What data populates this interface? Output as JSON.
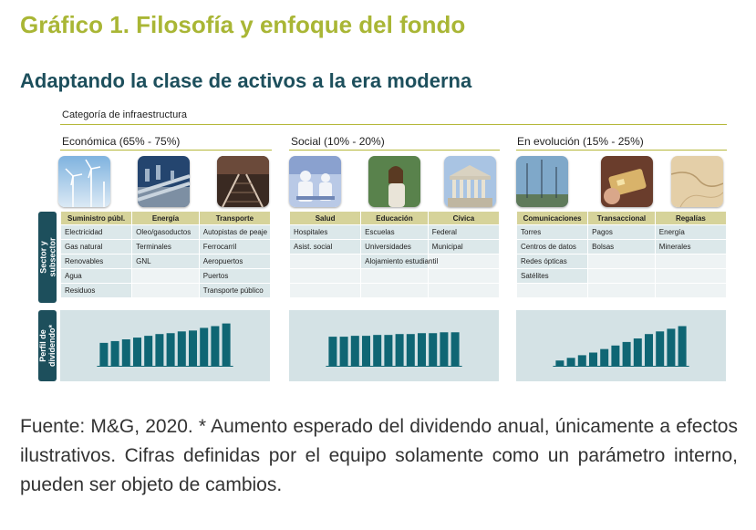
{
  "title": "Gráfico 1. Filosofía y enfoque del fondo",
  "subtitle": "Adaptando la clase de activos a la era moderna",
  "category_label": "Categoría de infraestructura",
  "side_labels": {
    "sector": "Sector y subsector",
    "dividend": "Perfil de dividendo*"
  },
  "groups": [
    {
      "title": "Económica (65% - 75%)",
      "columns": [
        "Suministro públ.",
        "Energía",
        "Transporte"
      ],
      "rows": [
        [
          "Electricidad",
          "Oleo/gasoductos",
          "Autopistas de peaje"
        ],
        [
          "Gas natural",
          "Terminales",
          "Ferrocarril"
        ],
        [
          "Renovables",
          "GNL",
          "Aeropuertos"
        ],
        [
          "Agua",
          "",
          "Puertos"
        ],
        [
          "Residuos",
          "",
          "Transporte público"
        ]
      ]
    },
    {
      "title": "Social (10% - 20%)",
      "columns": [
        "Salud",
        "Educación",
        "Cívica"
      ],
      "rows": [
        [
          "Hospitales",
          "Escuelas",
          "Federal"
        ],
        [
          "Asist. social",
          "Universidades",
          "Municipal"
        ],
        [
          "",
          "Alojamiento estudiantil",
          ""
        ],
        [
          "",
          "",
          ""
        ],
        [
          "",
          "",
          ""
        ]
      ]
    },
    {
      "title": "En evolución (15% - 25%)",
      "columns": [
        "Comunicaciones",
        "Transaccional",
        "Regalías"
      ],
      "rows": [
        [
          "Torres",
          "Pagos",
          "Energía"
        ],
        [
          "Centros de datos",
          "Bolsas",
          "Minerales"
        ],
        [
          "Redes ópticas",
          "",
          ""
        ],
        [
          "Satélites",
          "",
          ""
        ],
        [
          "",
          "",
          ""
        ]
      ]
    }
  ],
  "colors": {
    "bar": "#0f6674",
    "panel": "#d4e2e5",
    "title": "#a9b635",
    "subtitle": "#1d4f5c"
  },
  "chart_data": [
    {
      "type": "bar",
      "categories": [
        "1",
        "2",
        "3",
        "4",
        "5",
        "6",
        "7",
        "8",
        "9",
        "10",
        "11",
        "12"
      ],
      "values": [
        26,
        28,
        30,
        32,
        34,
        36,
        37,
        39,
        40,
        43,
        45,
        48
      ],
      "ylim": [
        0,
        60
      ]
    },
    {
      "type": "bar",
      "categories": [
        "1",
        "2",
        "3",
        "4",
        "5",
        "6",
        "7",
        "8",
        "9",
        "10",
        "11",
        "12"
      ],
      "values": [
        33,
        33,
        34,
        34,
        35,
        35,
        36,
        36,
        37,
        37,
        38,
        38
      ],
      "ylim": [
        0,
        60
      ]
    },
    {
      "type": "bar",
      "categories": [
        "1",
        "2",
        "3",
        "4",
        "5",
        "6",
        "7",
        "8",
        "9",
        "10",
        "11",
        "12"
      ],
      "values": [
        6,
        9,
        12,
        15,
        19,
        23,
        27,
        31,
        36,
        39,
        42,
        45
      ],
      "ylim": [
        0,
        60
      ]
    }
  ],
  "footer": "Fuente: M&G, 2020. * Aumento esperado del dividendo anual, únicamente a efectos ilustrativos. Cifras definidas por el equipo solamente como un parámetro interno, pueden ser objeto de cambios."
}
